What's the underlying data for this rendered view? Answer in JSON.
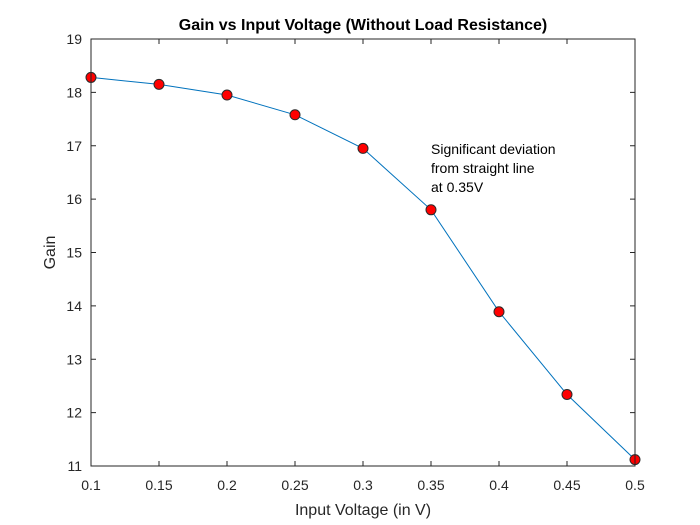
{
  "chart_data": {
    "type": "line",
    "title": "Gain vs Input Voltage (Without Load Resistance)",
    "xlabel": "Input Voltage (in V)",
    "ylabel": "Gain",
    "xlim": [
      0.1,
      0.5
    ],
    "ylim": [
      11,
      19
    ],
    "xticks": [
      "0.1",
      "0.15",
      "0.2",
      "0.25",
      "0.3",
      "0.35",
      "0.4",
      "0.45",
      "0.5"
    ],
    "yticks": [
      "11",
      "12",
      "13",
      "14",
      "15",
      "16",
      "17",
      "18",
      "19"
    ],
    "grid": false,
    "series": [
      {
        "x": [
          0.1,
          0.15,
          0.2,
          0.25,
          0.3,
          0.35,
          0.4,
          0.45,
          0.5
        ],
        "y": [
          18.28,
          18.15,
          17.95,
          17.58,
          16.95,
          15.8,
          13.89,
          12.34,
          11.12
        ],
        "line_color": "#0072BD",
        "marker_color": "#FF0000"
      }
    ],
    "annotations": [
      {
        "lines": [
          "Significant deviation",
          "from straight line",
          "at 0.35V"
        ],
        "x": 0.35,
        "y": 16.85
      }
    ]
  }
}
